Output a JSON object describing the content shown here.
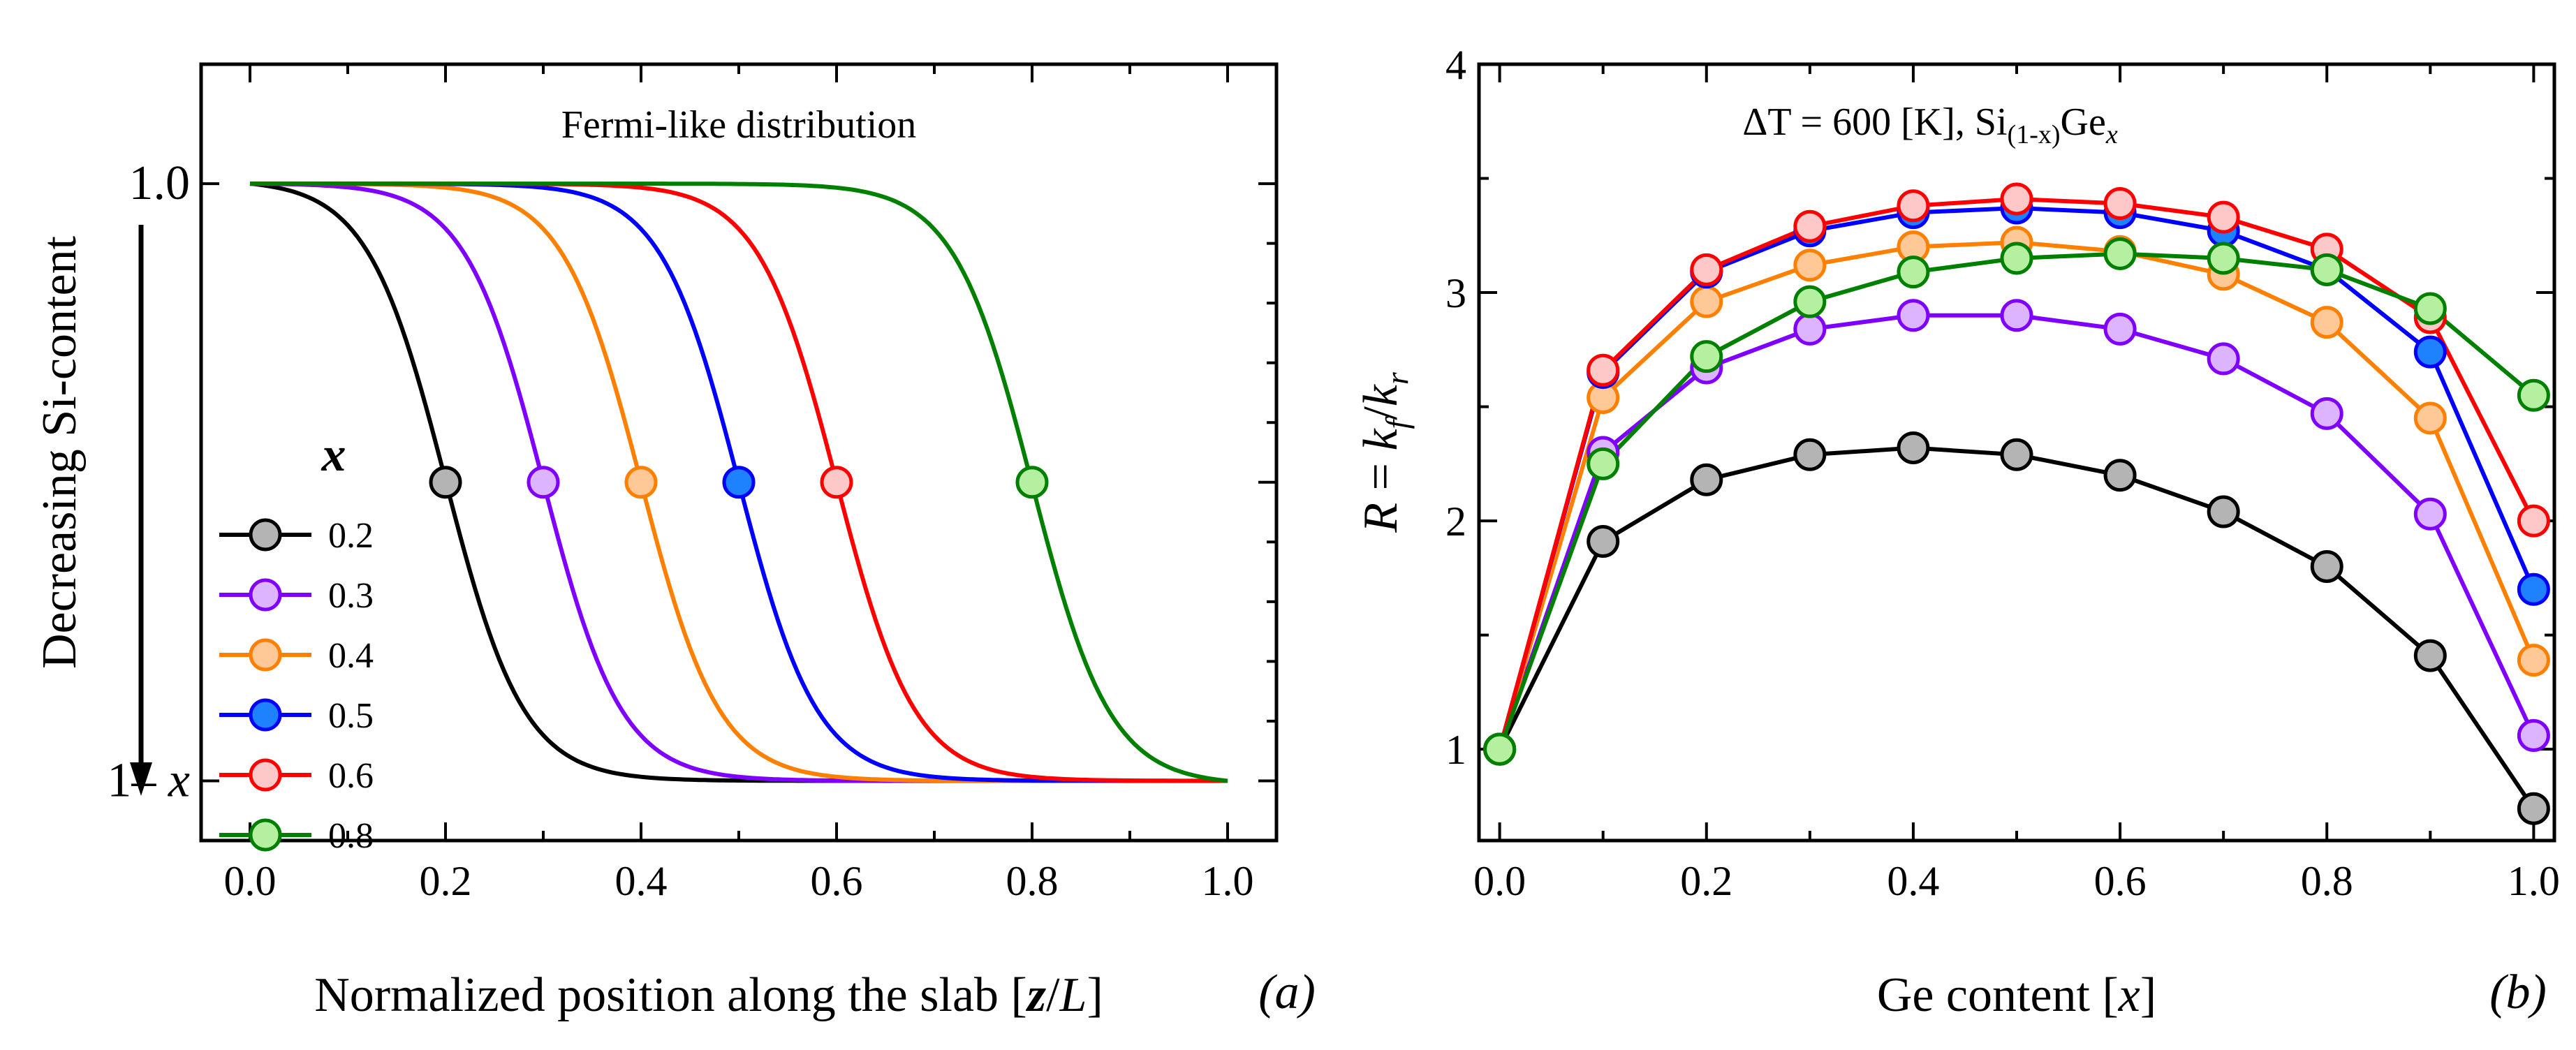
{
  "chart_data": [
    {
      "panel": "a",
      "type": "line",
      "title": "Fermi-like distribution",
      "xlabel": "Normalized position along the slab [z/L]",
      "ylabel": "Decreasing Si-content",
      "panel_label": "(a)",
      "xlim": [
        -0.05,
        1.05
      ],
      "ylim": [
        -0.1,
        1.2
      ],
      "xticks": [
        0.0,
        0.2,
        0.4,
        0.6,
        0.8,
        1.0
      ],
      "xtick_labels": [
        "0.0",
        "0.2",
        "0.4",
        "0.6",
        "0.8",
        "1.0"
      ],
      "ytick_labels": [
        {
          "value": 1.0,
          "label": "1.0"
        },
        {
          "value": 0.0,
          "label": "1– x"
        }
      ],
      "legend_title": "x",
      "legend_position": "left",
      "marker_value": 0.5,
      "curve_width": 0.04,
      "series": [
        {
          "name": "0.2",
          "x0": 0.2,
          "color": "#000000",
          "fill": "#b4b4b4"
        },
        {
          "name": "0.3",
          "x0": 0.3,
          "color": "#7f00ff",
          "fill": "#dcb4ff"
        },
        {
          "name": "0.4",
          "x0": 0.4,
          "color": "#ff8000",
          "fill": "#ffc896"
        },
        {
          "name": "0.5",
          "x0": 0.5,
          "color": "#0000ff",
          "fill": "#1e82ff"
        },
        {
          "name": "0.6",
          "x0": 0.6,
          "color": "#ff0000",
          "fill": "#ffc8c8"
        },
        {
          "name": "0.8",
          "x0": 0.8,
          "color": "#008000",
          "fill": "#b4f0a0"
        }
      ]
    },
    {
      "panel": "b",
      "type": "line",
      "title": "ΔT = 600 [K], Si(1-x)Gex",
      "xlabel": "Ge content [x]",
      "ylabel": "R = kf/kr",
      "panel_label": "(b)",
      "xlim": [
        -0.02,
        1.02
      ],
      "ylim": [
        0.6,
        4.0
      ],
      "xticks": [
        0.0,
        0.2,
        0.4,
        0.6,
        0.8,
        1.0
      ],
      "xtick_labels": [
        "0.0",
        "0.2",
        "0.4",
        "0.6",
        "0.8",
        "1.0"
      ],
      "yticks": [
        1,
        2,
        3,
        4
      ],
      "ytick_labels": [
        "1",
        "2",
        "3",
        "4"
      ],
      "x": [
        0.0,
        0.1,
        0.2,
        0.3,
        0.4,
        0.5,
        0.6,
        0.7,
        0.8,
        0.9,
        1.0
      ],
      "series": [
        {
          "name": "0.2",
          "color": "#000000",
          "fill": "#b4b4b4",
          "values": [
            1.0,
            1.91,
            2.18,
            2.29,
            2.32,
            2.29,
            2.2,
            2.04,
            1.8,
            1.41,
            0.74
          ]
        },
        {
          "name": "0.3",
          "color": "#7f00ff",
          "fill": "#dcb4ff",
          "values": [
            1.0,
            2.3,
            2.67,
            2.84,
            2.9,
            2.9,
            2.84,
            2.71,
            2.47,
            2.03,
            1.06
          ]
        },
        {
          "name": "0.4",
          "color": "#ff8000",
          "fill": "#ffc896",
          "values": [
            1.0,
            2.54,
            2.96,
            3.12,
            3.2,
            3.22,
            3.18,
            3.08,
            2.87,
            2.45,
            1.39
          ]
        },
        {
          "name": "0.5",
          "color": "#0000ff",
          "fill": "#1e82ff",
          "values": [
            1.0,
            2.65,
            3.09,
            3.27,
            3.35,
            3.37,
            3.35,
            3.27,
            3.1,
            2.74,
            1.7
          ]
        },
        {
          "name": "0.6",
          "color": "#ff0000",
          "fill": "#ffc8c8",
          "values": [
            1.0,
            2.66,
            3.1,
            3.29,
            3.38,
            3.41,
            3.39,
            3.33,
            3.19,
            2.89,
            2.0
          ]
        },
        {
          "name": "0.8",
          "color": "#008000",
          "fill": "#b4f0a0",
          "values": [
            1.0,
            2.25,
            2.72,
            2.96,
            3.09,
            3.15,
            3.17,
            3.15,
            3.1,
            2.93,
            2.55
          ]
        }
      ]
    }
  ]
}
